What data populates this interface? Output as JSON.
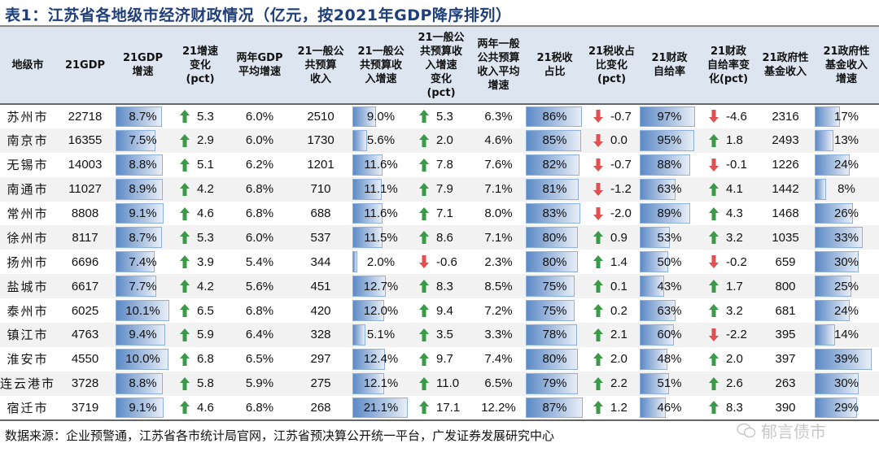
{
  "title": "表1：江苏省各地级市经济财政情况（亿元，按2021年GDP降序排列）",
  "columns": [
    "地级市",
    "21GDP",
    "21GDP\n增速",
    "21增速\n变化\n(pct)",
    "两年GDP\n平均增速",
    "21一般公\n共预算\n收入",
    "21一般公\n共预算收\n入增速",
    "21一般公\n共预算收\n入增速\n变化\n(pct)",
    "两年一般\n公共预算\n收入平均\n增速",
    "21税收\n占比",
    "21税收占\n比变化\n(pct)",
    "21财政\n自给率",
    "21财政\n自给率变\n化(pct)",
    "21政府性\n基金收入",
    "21政府性\n基金收入\n增速"
  ],
  "colors": {
    "header_bg": "#dce5f0",
    "bar": "#5d8ac6",
    "up": "#3a9a48",
    "down": "#e05050"
  },
  "rows": [
    [
      "苏州市",
      "22718",
      "8.7%",
      "5.3",
      "6.0%",
      "2510",
      "9.0%",
      "5.3",
      "6.3%",
      "86%",
      "-0.7",
      "97%",
      "-4.6",
      "2316",
      "17%"
    ],
    [
      "南京市",
      "16355",
      "7.5%",
      "2.9",
      "6.0%",
      "1730",
      "5.6%",
      "2.0",
      "4.6%",
      "85%",
      "0.0",
      "95%",
      "1.8",
      "2493",
      "13%"
    ],
    [
      "无锡市",
      "14003",
      "8.8%",
      "5.1",
      "6.2%",
      "1201",
      "11.6%",
      "7.8",
      "7.6%",
      "82%",
      "-0.7",
      "88%",
      "-0.1",
      "1226",
      "24%"
    ],
    [
      "南通市",
      "11027",
      "8.9%",
      "4.2",
      "6.8%",
      "710",
      "11.1%",
      "7.9",
      "7.1%",
      "81%",
      "-1.2",
      "63%",
      "4.1",
      "1442",
      "8%"
    ],
    [
      "常州市",
      "8808",
      "9.1%",
      "4.6",
      "6.8%",
      "688",
      "11.6%",
      "7.1",
      "8.0%",
      "83%",
      "-2.0",
      "89%",
      "4.3",
      "1468",
      "26%"
    ],
    [
      "徐州市",
      "8117",
      "8.7%",
      "5.3",
      "6.0%",
      "537",
      "11.5%",
      "8.6",
      "7.1%",
      "80%",
      "0.9",
      "53%",
      "3.2",
      "1035",
      "33%"
    ],
    [
      "扬州市",
      "6696",
      "7.4%",
      "3.9",
      "5.4%",
      "344",
      "2.0%",
      "-0.6",
      "2.3%",
      "80%",
      "1.4",
      "50%",
      "-0.2",
      "659",
      "30%"
    ],
    [
      "盐城市",
      "6617",
      "7.7%",
      "4.2",
      "5.6%",
      "451",
      "12.7%",
      "8.3",
      "8.5%",
      "75%",
      "0.1",
      "43%",
      "1.7",
      "800",
      "25%"
    ],
    [
      "泰州市",
      "6025",
      "10.1%",
      "6.5",
      "6.8%",
      "420",
      "12.0%",
      "9.4",
      "7.2%",
      "75%",
      "0.2",
      "63%",
      "3.2",
      "681",
      "24%"
    ],
    [
      "镇江市",
      "4763",
      "9.4%",
      "5.9",
      "6.4%",
      "328",
      "5.1%",
      "3.5",
      "3.3%",
      "78%",
      "2.1",
      "60%",
      "-2.2",
      "395",
      "14%"
    ],
    [
      "淮安市",
      "4550",
      "10.0%",
      "6.8",
      "6.5%",
      "297",
      "12.4%",
      "9.7",
      "7.4%",
      "80%",
      "2.0",
      "48%",
      "2.0",
      "397",
      "39%"
    ],
    [
      "连云港市",
      "3728",
      "8.8%",
      "5.8",
      "5.9%",
      "275",
      "12.1%",
      "11.0",
      "6.5%",
      "79%",
      "2.2",
      "51%",
      "2.6",
      "263",
      "30%"
    ],
    [
      "宿迁市",
      "3719",
      "9.1%",
      "4.6",
      "6.8%",
      "268",
      "21.1%",
      "17.1",
      "12.2%",
      "87%",
      "1.2",
      "46%",
      "8.3",
      "390",
      "29%"
    ]
  ],
  "arrow_down_values": {
    "苏州市": [
      10,
      12
    ],
    "南京市": [
      10
    ],
    "无锡市": [
      10,
      12
    ],
    "南通市": [
      10
    ],
    "常州市": [
      10
    ],
    "扬州市": [
      7,
      12
    ],
    "镇江市": [
      12
    ]
  },
  "footer": "数据来源：企业预警通，江苏省各市统计局官网，江苏省预决算公开统一平台，广发证券发展研究中心",
  "watermark": "郁言债市"
}
